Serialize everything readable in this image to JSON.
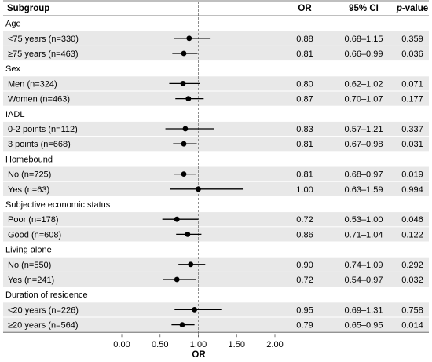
{
  "headers": {
    "subgroup": "Subgroup",
    "or": "OR",
    "ci": "95% CI",
    "p_prefix": "p",
    "p_suffix": "-value"
  },
  "colors": {
    "band": "#e8e8e8",
    "rule": "#555555",
    "refline": "#8c8c8c",
    "marker": "#000000"
  },
  "chart_data": {
    "type": "forest",
    "xlabel": "OR",
    "xlim": [
      0,
      2
    ],
    "ticks": [
      "0.00",
      "0.50",
      "1.00",
      "1.50",
      "2.00"
    ],
    "tick_values": [
      0,
      0.5,
      1,
      1.5,
      2
    ],
    "reference_value": 1,
    "rows": [
      {
        "kind": "group",
        "label": "Age"
      },
      {
        "kind": "item",
        "label": "<75 years (n=330)",
        "or": 0.88,
        "lo": 0.68,
        "hi": 1.15,
        "or_text": "0.88",
        "ci_text": "0.68–1.15",
        "p_text": "0.359"
      },
      {
        "kind": "item",
        "label": "≥75 years (n=463)",
        "or": 0.81,
        "lo": 0.66,
        "hi": 0.99,
        "or_text": "0.81",
        "ci_text": "0.66–0.99",
        "p_text": "0.036"
      },
      {
        "kind": "group",
        "label": "Sex"
      },
      {
        "kind": "item",
        "label": "Men (n=324)",
        "or": 0.8,
        "lo": 0.62,
        "hi": 1.02,
        "or_text": "0.80",
        "ci_text": "0.62–1.02",
        "p_text": "0.071"
      },
      {
        "kind": "item",
        "label": "Women (n=463)",
        "or": 0.87,
        "lo": 0.7,
        "hi": 1.07,
        "or_text": "0.87",
        "ci_text": "0.70–1.07",
        "p_text": "0.177"
      },
      {
        "kind": "group",
        "label": "IADL"
      },
      {
        "kind": "item",
        "label": "0-2 points (n=112)",
        "or": 0.83,
        "lo": 0.57,
        "hi": 1.21,
        "or_text": "0.83",
        "ci_text": "0.57–1.21",
        "p_text": "0.337"
      },
      {
        "kind": "item",
        "label": "3 points (n=668)",
        "or": 0.81,
        "lo": 0.67,
        "hi": 0.98,
        "or_text": "0.81",
        "ci_text": "0.67–0.98",
        "p_text": "0.031"
      },
      {
        "kind": "group",
        "label": "Homebound"
      },
      {
        "kind": "item",
        "label": "No (n=725)",
        "or": 0.81,
        "lo": 0.68,
        "hi": 0.97,
        "or_text": "0.81",
        "ci_text": "0.68–0.97",
        "p_text": "0.019"
      },
      {
        "kind": "item",
        "label": "Yes (n=63)",
        "or": 1.0,
        "lo": 0.63,
        "hi": 1.59,
        "or_text": "1.00",
        "ci_text": "0.63–1.59",
        "p_text": "0.994"
      },
      {
        "kind": "group",
        "label": "Subjective economic status"
      },
      {
        "kind": "item",
        "label": "Poor (n=178)",
        "or": 0.72,
        "lo": 0.53,
        "hi": 1.0,
        "or_text": "0.72",
        "ci_text": "0.53–1.00",
        "p_text": "0.046"
      },
      {
        "kind": "item",
        "label": "Good (n=608)",
        "or": 0.86,
        "lo": 0.71,
        "hi": 1.04,
        "or_text": "0.86",
        "ci_text": "0.71–1.04",
        "p_text": "0.122"
      },
      {
        "kind": "group",
        "label": "Living alone"
      },
      {
        "kind": "item",
        "label": "No (n=550)",
        "or": 0.9,
        "lo": 0.74,
        "hi": 1.09,
        "or_text": "0.90",
        "ci_text": "0.74–1.09",
        "p_text": "0.292"
      },
      {
        "kind": "item",
        "label": "Yes (n=241)",
        "or": 0.72,
        "lo": 0.54,
        "hi": 0.97,
        "or_text": "0.72",
        "ci_text": "0.54–0.97",
        "p_text": "0.032"
      },
      {
        "kind": "group",
        "label": "Duration of residence"
      },
      {
        "kind": "item",
        "label": "<20 years (n=226)",
        "or": 0.95,
        "lo": 0.69,
        "hi": 1.31,
        "or_text": "0.95",
        "ci_text": "0.69–1.31",
        "p_text": "0.758"
      },
      {
        "kind": "item",
        "label": "≥20 years (n=564)",
        "or": 0.79,
        "lo": 0.65,
        "hi": 0.95,
        "or_text": "0.79",
        "ci_text": "0.65–0.95",
        "p_text": "0.014"
      }
    ]
  }
}
